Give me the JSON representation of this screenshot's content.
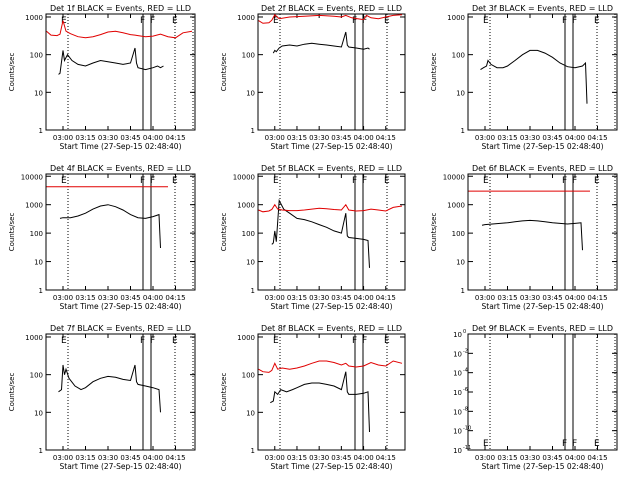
{
  "colors": {
    "events": "#000000",
    "lld": "#e00000",
    "background": "#ffffff"
  },
  "chart_data": [
    {
      "type": "line",
      "title": "Det 1f BLACK = Events, RED = LLD",
      "ylabel": "Counts/sec",
      "xlabel": "Start Time (27-Sep-15 02:48:40)",
      "xticks": [
        "03:00",
        "03:15",
        "03:30",
        "03:45",
        "04:00",
        "04:15"
      ],
      "yscale": "log",
      "yticks": [
        "1",
        "10",
        "100",
        "1000"
      ],
      "ylim": [
        1,
        1200
      ],
      "xlim": [
        "02:48:40",
        "04:28"
      ],
      "markers": [
        "E",
        "F",
        "F",
        "E"
      ],
      "series": [
        {
          "name": "Events",
          "color": "#000000",
          "x": [
            "02:57",
            "02:58",
            "03:00",
            "03:01",
            "03:03",
            "03:06",
            "03:10",
            "03:15",
            "03:20",
            "03:25",
            "03:30",
            "03:35",
            "03:40",
            "03:45",
            "03:48",
            "03:49",
            "03:50",
            "03:55",
            "04:00",
            "04:03",
            "04:05",
            "04:07"
          ],
          "y": [
            30,
            32,
            130,
            70,
            100,
            70,
            55,
            50,
            60,
            70,
            65,
            60,
            55,
            60,
            150,
            60,
            45,
            40,
            45,
            50,
            45,
            50
          ]
        },
        {
          "name": "LLD",
          "color": "#e00000",
          "x": [
            "02:49",
            "02:52",
            "02:56",
            "02:58",
            "03:00",
            "03:02",
            "03:05",
            "03:10",
            "03:15",
            "03:20",
            "03:25",
            "03:30",
            "03:35",
            "03:40",
            "03:45",
            "03:48",
            "03:50",
            "03:55",
            "04:00",
            "04:05",
            "04:10",
            "04:15",
            "04:20",
            "04:26"
          ],
          "y": [
            420,
            330,
            320,
            350,
            800,
            420,
            360,
            300,
            280,
            300,
            340,
            400,
            420,
            380,
            340,
            330,
            320,
            300,
            310,
            350,
            300,
            280,
            380,
            420
          ]
        }
      ]
    },
    {
      "type": "line",
      "title": "Det 2f BLACK = Events, RED = LLD",
      "ylabel": "Counts/sec",
      "xlabel": "Start Time (27-Sep-15 02:48:40)",
      "xticks": [
        "03:00",
        "03:15",
        "03:30",
        "03:45",
        "04:00",
        "04:15"
      ],
      "yscale": "log",
      "yticks": [
        "1",
        "10",
        "100",
        "1000"
      ],
      "ylim": [
        1,
        1200
      ],
      "xlim": [
        "02:48:40",
        "04:28"
      ],
      "markers": [
        "E",
        "F",
        "F",
        "E"
      ],
      "series": [
        {
          "name": "Events",
          "color": "#000000",
          "x": [
            "02:59",
            "03:00",
            "03:01",
            "03:03",
            "03:05",
            "03:10",
            "03:15",
            "03:20",
            "03:25",
            "03:30",
            "03:35",
            "03:40",
            "03:45",
            "03:48",
            "03:49",
            "03:50",
            "03:55",
            "04:00",
            "04:03",
            "04:04"
          ],
          "y": [
            110,
            130,
            120,
            150,
            170,
            180,
            170,
            190,
            200,
            190,
            180,
            170,
            160,
            400,
            180,
            160,
            150,
            140,
            150,
            140
          ]
        },
        {
          "name": "LLD",
          "color": "#e00000",
          "x": [
            "02:49",
            "02:52",
            "02:56",
            "02:58",
            "03:00",
            "03:03",
            "03:10",
            "03:20",
            "03:30",
            "03:40",
            "03:45",
            "03:48",
            "03:52",
            "03:56",
            "04:00",
            "04:02",
            "04:05",
            "04:10",
            "04:15",
            "04:20",
            "04:26"
          ],
          "y": [
            800,
            680,
            700,
            820,
            1150,
            900,
            1000,
            1050,
            1100,
            1050,
            1000,
            1100,
            950,
            900,
            850,
            1100,
            950,
            900,
            1000,
            1100,
            1150
          ]
        }
      ]
    },
    {
      "type": "line",
      "title": "Det 3f BLACK = Events, RED = LLD",
      "ylabel": "Counts/sec",
      "xlabel": "Start Time (27-Sep-15 02:48:40)",
      "xticks": [
        "03:00",
        "03:15",
        "03:30",
        "03:45",
        "04:00",
        "04:15"
      ],
      "yscale": "log",
      "yticks": [
        "1",
        "10",
        "100",
        "1000"
      ],
      "ylim": [
        1,
        1200
      ],
      "xlim": [
        "02:48:40",
        "04:28"
      ],
      "markers": [
        "E",
        "F",
        "F",
        "E"
      ],
      "series": [
        {
          "name": "Events",
          "color": "#000000",
          "x": [
            "02:57",
            "02:59",
            "03:01",
            "03:02",
            "03:04",
            "03:08",
            "03:12",
            "03:15",
            "03:20",
            "03:25",
            "03:30",
            "03:35",
            "03:40",
            "03:45",
            "03:50",
            "03:55",
            "04:00",
            "04:05",
            "04:07",
            "04:08"
          ],
          "y": [
            40,
            45,
            50,
            70,
            55,
            45,
            45,
            50,
            70,
            100,
            130,
            130,
            110,
            85,
            60,
            48,
            45,
            50,
            60,
            5
          ]
        }
      ]
    },
    {
      "type": "line",
      "title": "Det 4f BLACK = Events, RED = LLD",
      "ylabel": "Counts/sec",
      "xlabel": "Start Time (27-Sep-15 02:48:40)",
      "xticks": [
        "03:00",
        "03:15",
        "03:30",
        "03:45",
        "04:00",
        "04:15"
      ],
      "yscale": "log",
      "yticks": [
        "1",
        "10",
        "100",
        "1000",
        "10000"
      ],
      "ylim": [
        1,
        12000
      ],
      "xlim": [
        "02:48:40",
        "04:28"
      ],
      "markers": [
        "E",
        "F",
        "F",
        "E"
      ],
      "series": [
        {
          "name": "Events",
          "color": "#000000",
          "x": [
            "02:58",
            "03:00",
            "03:05",
            "03:10",
            "03:15",
            "03:20",
            "03:25",
            "03:30",
            "03:35",
            "03:40",
            "03:45",
            "03:50",
            "03:55",
            "04:00",
            "04:04",
            "04:05"
          ],
          "y": [
            330,
            350,
            350,
            400,
            500,
            700,
            900,
            1000,
            850,
            650,
            450,
            350,
            330,
            380,
            450,
            30
          ]
        },
        {
          "name": "LLD",
          "color": "#e00000",
          "x": [
            "02:49",
            "04:10"
          ],
          "y": [
            4300,
            4300
          ]
        }
      ]
    },
    {
      "type": "line",
      "title": "Det 5f BLACK = Events, RED = LLD",
      "ylabel": "Counts/sec",
      "xlabel": "Start Time (27-Sep-15 02:48:40)",
      "xticks": [
        "03:00",
        "03:15",
        "03:30",
        "03:45",
        "04:00",
        "04:15"
      ],
      "yscale": "log",
      "yticks": [
        "1",
        "10",
        "100",
        "1000",
        "10000"
      ],
      "ylim": [
        1,
        12000
      ],
      "xlim": [
        "02:48:40",
        "04:28"
      ],
      "markers": [
        "E",
        "F",
        "F",
        "E"
      ],
      "series": [
        {
          "name": "Events",
          "color": "#000000",
          "x": [
            "02:58",
            "02:59",
            "03:00",
            "03:01",
            "03:03",
            "03:06",
            "03:10",
            "03:15",
            "03:20",
            "03:25",
            "03:30",
            "03:35",
            "03:40",
            "03:45",
            "03:48",
            "03:49",
            "03:50",
            "03:55",
            "04:00",
            "04:03",
            "04:04"
          ],
          "y": [
            40,
            45,
            120,
            50,
            1400,
            700,
            500,
            330,
            300,
            250,
            200,
            160,
            120,
            100,
            500,
            80,
            70,
            65,
            60,
            55,
            6
          ]
        },
        {
          "name": "LLD",
          "color": "#e00000",
          "x": [
            "02:49",
            "02:52",
            "02:56",
            "02:58",
            "03:00",
            "03:02",
            "03:05",
            "03:10",
            "03:15",
            "03:20",
            "03:25",
            "03:30",
            "03:35",
            "03:40",
            "03:45",
            "03:48",
            "03:50",
            "03:55",
            "04:00",
            "04:05",
            "04:10",
            "04:15",
            "04:20",
            "04:26"
          ],
          "y": [
            650,
            560,
            600,
            680,
            1000,
            700,
            650,
            620,
            620,
            650,
            700,
            750,
            720,
            680,
            650,
            1000,
            650,
            600,
            620,
            700,
            650,
            600,
            800,
            900
          ]
        }
      ]
    },
    {
      "type": "line",
      "title": "Det 6f BLACK = Events, RED = LLD",
      "ylabel": "Counts/sec",
      "xlabel": "Start Time (27-Sep-15 02:48:40)",
      "xticks": [
        "03:00",
        "03:15",
        "03:30",
        "03:45",
        "04:00",
        "04:15"
      ],
      "yscale": "log",
      "yticks": [
        "1",
        "10",
        "100",
        "1000",
        "10000"
      ],
      "ylim": [
        1,
        12000
      ],
      "xlim": [
        "02:48:40",
        "04:28"
      ],
      "markers": [
        "E",
        "F",
        "F",
        "E"
      ],
      "series": [
        {
          "name": "Events",
          "color": "#000000",
          "x": [
            "02:58",
            "03:00",
            "03:05",
            "03:10",
            "03:15",
            "03:20",
            "03:25",
            "03:30",
            "03:35",
            "03:40",
            "03:45",
            "03:50",
            "03:55",
            "04:00",
            "04:04",
            "04:05"
          ],
          "y": [
            190,
            200,
            210,
            220,
            230,
            250,
            270,
            280,
            270,
            250,
            230,
            220,
            210,
            220,
            230,
            25
          ]
        },
        {
          "name": "LLD",
          "color": "#e00000",
          "x": [
            "02:49",
            "04:10"
          ],
          "y": [
            3000,
            3000
          ]
        }
      ]
    },
    {
      "type": "line",
      "title": "Det 7f BLACK = Events, RED = LLD",
      "ylabel": "Counts/sec",
      "xlabel": "Start Time (27-Sep-15 02:48:40)",
      "xticks": [
        "03:00",
        "03:15",
        "03:30",
        "03:45",
        "04:00",
        "04:15"
      ],
      "yscale": "log",
      "yticks": [
        "1",
        "10",
        "100",
        "1000"
      ],
      "ylim": [
        1,
        1200
      ],
      "xlim": [
        "02:48:40",
        "04:28"
      ],
      "markers": [
        "E",
        "F",
        "F",
        "E"
      ],
      "series": [
        {
          "name": "Events",
          "color": "#000000",
          "x": [
            "02:57",
            "02:59",
            "03:00",
            "03:01",
            "03:02",
            "03:04",
            "03:08",
            "03:12",
            "03:15",
            "03:20",
            "03:25",
            "03:30",
            "03:35",
            "03:40",
            "03:45",
            "03:48",
            "03:49",
            "03:50",
            "03:55",
            "04:00",
            "04:04",
            "04:05"
          ],
          "y": [
            35,
            40,
            180,
            100,
            140,
            80,
            50,
            40,
            45,
            65,
            80,
            90,
            85,
            75,
            70,
            180,
            65,
            55,
            50,
            45,
            40,
            10
          ]
        }
      ]
    },
    {
      "type": "line",
      "title": "Det 8f BLACK = Events, RED = LLD",
      "ylabel": "Counts/sec",
      "xlabel": "Start Time (27-Sep-15 02:48:40)",
      "xticks": [
        "03:00",
        "03:15",
        "03:30",
        "03:45",
        "04:00",
        "04:15"
      ],
      "yscale": "log",
      "yticks": [
        "1",
        "10",
        "100",
        "1000"
      ],
      "ylim": [
        1,
        1200
      ],
      "xlim": [
        "02:48:40",
        "04:28"
      ],
      "markers": [
        "E",
        "F",
        "F",
        "E"
      ],
      "series": [
        {
          "name": "Events",
          "color": "#000000",
          "x": [
            "02:57",
            "02:59",
            "03:00",
            "03:02",
            "03:04",
            "03:08",
            "03:12",
            "03:15",
            "03:20",
            "03:25",
            "03:30",
            "03:35",
            "03:40",
            "03:45",
            "03:48",
            "03:49",
            "03:50",
            "03:55",
            "04:00",
            "04:03",
            "04:04"
          ],
          "y": [
            18,
            20,
            35,
            30,
            40,
            35,
            40,
            45,
            55,
            60,
            60,
            55,
            50,
            40,
            120,
            35,
            30,
            30,
            32,
            35,
            3
          ]
        },
        {
          "name": "LLD",
          "color": "#e00000",
          "x": [
            "02:49",
            "02:52",
            "02:56",
            "02:58",
            "03:00",
            "03:02",
            "03:05",
            "03:10",
            "03:15",
            "03:20",
            "03:25",
            "03:30",
            "03:35",
            "03:40",
            "03:45",
            "03:48",
            "03:50",
            "03:55",
            "04:00",
            "04:05",
            "04:10",
            "04:15",
            "04:20",
            "04:26"
          ],
          "y": [
            140,
            120,
            115,
            130,
            200,
            140,
            150,
            140,
            150,
            170,
            200,
            230,
            230,
            210,
            180,
            200,
            170,
            160,
            170,
            210,
            180,
            170,
            230,
            200
          ]
        }
      ]
    },
    {
      "type": "line",
      "title": "Det 9f BLACK = Events, RED = LLD",
      "ylabel": "",
      "xlabel": "Start Time (27-Sep-15 02:48:40)",
      "xticks": [
        "03:00",
        "03:15",
        "03:30",
        "03:45",
        "04:00",
        "04:15"
      ],
      "yscale": "log",
      "yticks_base": [
        "10",
        "10",
        "10",
        "10",
        "10",
        "10",
        "10"
      ],
      "yticks_exp": [
        "0",
        "-2",
        "-4",
        "-6",
        "-8",
        "-10",
        "-11"
      ],
      "ylim": [
        1,
        1e-11
      ],
      "xlim": [
        "02:48:40",
        "04:28"
      ],
      "markers": [
        "E",
        "F",
        "F",
        "E"
      ],
      "series": []
    }
  ]
}
